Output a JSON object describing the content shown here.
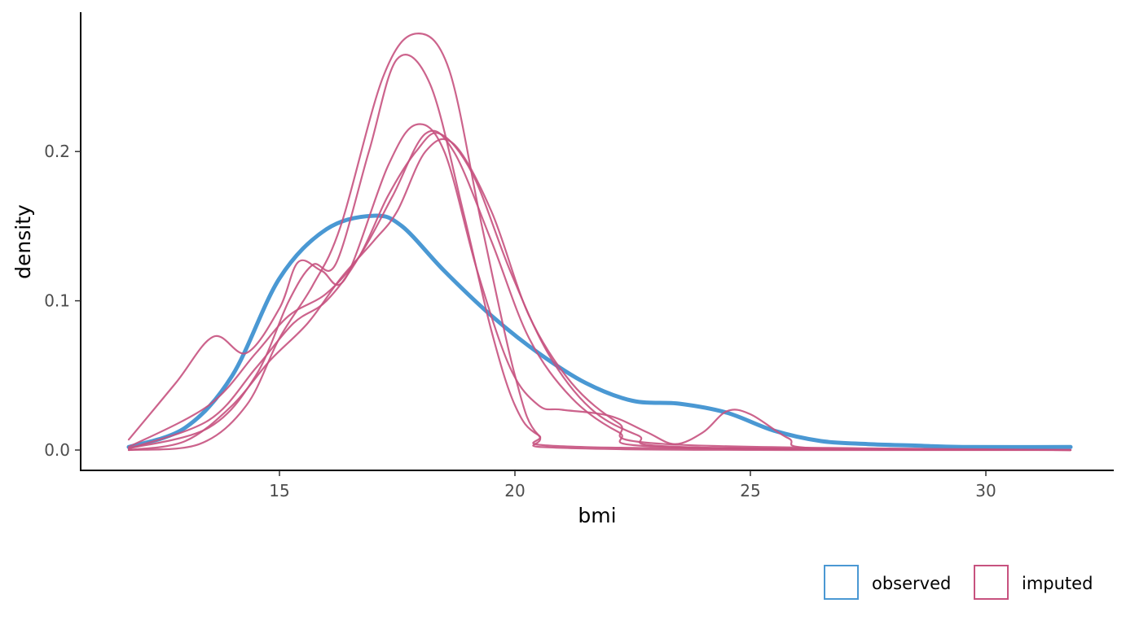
{
  "chart_data": {
    "type": "line",
    "title": "",
    "xlabel": "bmi",
    "ylabel": "density",
    "xlim": [
      11.8,
      31.8
    ],
    "ylim": [
      0.0,
      0.285
    ],
    "x_ticks": [
      15,
      20,
      25,
      30
    ],
    "x_tick_labels": [
      "15",
      "20",
      "25",
      "30"
    ],
    "y_ticks": [
      0.0,
      0.1,
      0.2
    ],
    "y_tick_labels": [
      "0.0",
      "0.1",
      "0.2"
    ],
    "grid": false,
    "legend_position": "bottom-right",
    "legend": [
      {
        "label": "observed",
        "color": "#4a98d3"
      },
      {
        "label": "imputed",
        "color": "#c7527f"
      }
    ],
    "series": [
      {
        "group": "observed",
        "color": "#4a98d3",
        "width": 5,
        "points": [
          [
            11.8,
            0.002
          ],
          [
            13,
            0.015
          ],
          [
            14,
            0.05
          ],
          [
            15,
            0.115
          ],
          [
            16,
            0.148
          ],
          [
            17,
            0.157
          ],
          [
            17.6,
            0.15
          ],
          [
            18.5,
            0.12
          ],
          [
            19.5,
            0.09
          ],
          [
            20.5,
            0.065
          ],
          [
            21.5,
            0.045
          ],
          [
            22.5,
            0.033
          ],
          [
            23.5,
            0.031
          ],
          [
            24.5,
            0.025
          ],
          [
            25.5,
            0.013
          ],
          [
            26.5,
            0.006
          ],
          [
            27.5,
            0.004
          ],
          [
            28.5,
            0.003
          ],
          [
            29.5,
            0.002
          ],
          [
            31.8,
            0.002
          ]
        ]
      },
      {
        "group": "imputed",
        "color": "#c7527f",
        "width": 2.2,
        "points": [
          [
            11.8,
            0.007
          ],
          [
            12.8,
            0.045
          ],
          [
            13.6,
            0.076
          ],
          [
            14.3,
            0.065
          ],
          [
            15,
            0.095
          ],
          [
            15.4,
            0.126
          ],
          [
            15.9,
            0.12
          ],
          [
            16.4,
            0.115
          ],
          [
            17.3,
            0.19
          ],
          [
            17.9,
            0.218
          ],
          [
            18.5,
            0.2
          ],
          [
            19.2,
            0.12
          ],
          [
            19.9,
            0.055
          ],
          [
            20.5,
            0.03
          ],
          [
            21,
            0.027
          ],
          [
            22,
            0.023
          ],
          [
            22.8,
            0.012
          ],
          [
            23.4,
            0.004
          ],
          [
            24,
            0.012
          ],
          [
            24.5,
            0.026
          ],
          [
            25,
            0.024
          ],
          [
            25.8,
            0.008
          ],
          [
            26.5,
            0.001
          ],
          [
            31.8,
            0.0
          ]
        ]
      },
      {
        "group": "imputed",
        "color": "#c7527f",
        "width": 2.2,
        "points": [
          [
            11.8,
            0.001
          ],
          [
            13.5,
            0.015
          ],
          [
            14.5,
            0.05
          ],
          [
            15.2,
            0.1
          ],
          [
            15.7,
            0.124
          ],
          [
            16.2,
            0.125
          ],
          [
            16.9,
            0.2
          ],
          [
            17.5,
            0.262
          ],
          [
            18.2,
            0.245
          ],
          [
            18.9,
            0.16
          ],
          [
            19.5,
            0.08
          ],
          [
            20,
            0.03
          ],
          [
            20.5,
            0.01
          ],
          [
            21.5,
            0.002
          ],
          [
            31.8,
            0.0
          ]
        ]
      },
      {
        "group": "imputed",
        "color": "#c7527f",
        "width": 2.2,
        "points": [
          [
            11.8,
            0.0
          ],
          [
            13.3,
            0.004
          ],
          [
            14.3,
            0.03
          ],
          [
            15,
            0.075
          ],
          [
            15.7,
            0.11
          ],
          [
            16.3,
            0.15
          ],
          [
            17.2,
            0.25
          ],
          [
            17.9,
            0.279
          ],
          [
            18.6,
            0.255
          ],
          [
            19.3,
            0.15
          ],
          [
            20,
            0.05
          ],
          [
            20.5,
            0.01
          ],
          [
            21.5,
            0.001
          ],
          [
            31.8,
            0.0
          ]
        ]
      },
      {
        "group": "imputed",
        "color": "#c7527f",
        "width": 2.2,
        "points": [
          [
            11.8,
            0.002
          ],
          [
            13.5,
            0.03
          ],
          [
            14.5,
            0.065
          ],
          [
            15.2,
            0.09
          ],
          [
            16,
            0.105
          ],
          [
            16.7,
            0.13
          ],
          [
            17.4,
            0.17
          ],
          [
            18.1,
            0.212
          ],
          [
            18.7,
            0.2
          ],
          [
            19.5,
            0.14
          ],
          [
            20.3,
            0.075
          ],
          [
            21.2,
            0.035
          ],
          [
            22.2,
            0.012
          ],
          [
            23.2,
            0.002
          ],
          [
            31.8,
            0.0
          ]
        ]
      },
      {
        "group": "imputed",
        "color": "#c7527f",
        "width": 2.2,
        "points": [
          [
            11.8,
            0.001
          ],
          [
            13.5,
            0.02
          ],
          [
            14.5,
            0.055
          ],
          [
            15.3,
            0.085
          ],
          [
            16,
            0.1
          ],
          [
            16.7,
            0.13
          ],
          [
            17.3,
            0.17
          ],
          [
            17.9,
            0.2
          ],
          [
            18.4,
            0.212
          ],
          [
            19.1,
            0.185
          ],
          [
            19.9,
            0.12
          ],
          [
            20.7,
            0.065
          ],
          [
            21.6,
            0.028
          ],
          [
            22.6,
            0.01
          ],
          [
            23.6,
            0.002
          ],
          [
            31.8,
            0.0
          ]
        ]
      },
      {
        "group": "imputed",
        "color": "#c7527f",
        "width": 2.2,
        "points": [
          [
            11.8,
            0.0
          ],
          [
            13,
            0.006
          ],
          [
            14,
            0.03
          ],
          [
            14.8,
            0.06
          ],
          [
            15.6,
            0.085
          ],
          [
            16.3,
            0.115
          ],
          [
            17,
            0.14
          ],
          [
            17.5,
            0.16
          ],
          [
            18.1,
            0.2
          ],
          [
            18.7,
            0.205
          ],
          [
            19.5,
            0.16
          ],
          [
            20.3,
            0.09
          ],
          [
            21.2,
            0.045
          ],
          [
            22.2,
            0.018
          ],
          [
            23.2,
            0.004
          ],
          [
            31.8,
            0.0
          ]
        ]
      }
    ]
  }
}
